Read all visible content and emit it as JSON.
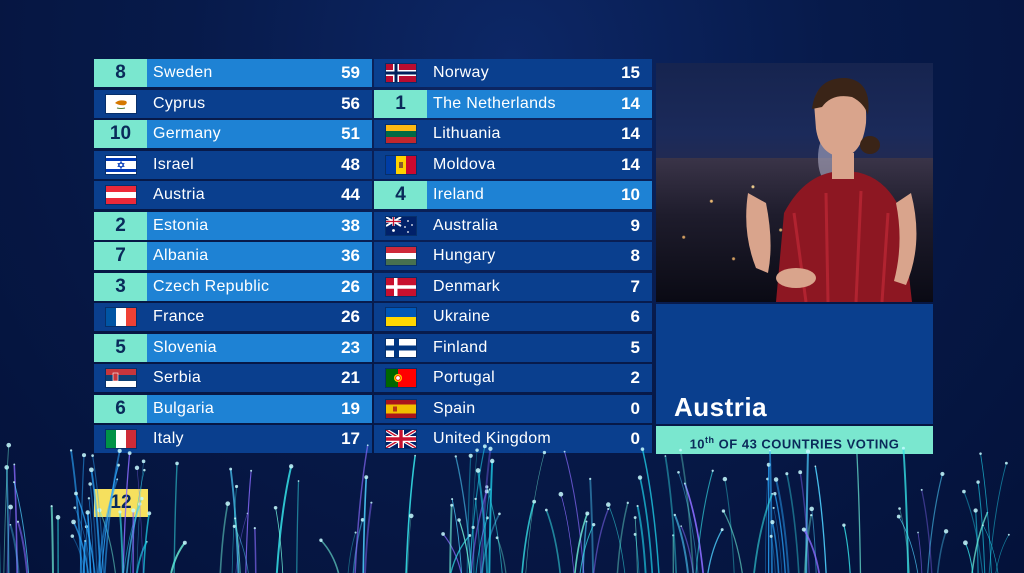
{
  "scoreboard": {
    "left": [
      {
        "points": "8",
        "country": "Sweden",
        "total": "59",
        "flag": "sweden-flag"
      },
      {
        "points": "",
        "country": "Cyprus",
        "total": "56",
        "flag": "cyprus-flag"
      },
      {
        "points": "10",
        "country": "Germany",
        "total": "51",
        "flag": "germany-flag"
      },
      {
        "points": "",
        "country": "Israel",
        "total": "48",
        "flag": "israel-flag"
      },
      {
        "points": "",
        "country": "Austria",
        "total": "44",
        "flag": "austria-flag"
      },
      {
        "points": "2",
        "country": "Estonia",
        "total": "38",
        "flag": "estonia-flag"
      },
      {
        "points": "7",
        "country": "Albania",
        "total": "36",
        "flag": "albania-flag"
      },
      {
        "points": "3",
        "country": "Czech Republic",
        "total": "26",
        "flag": "czech-republic-flag"
      },
      {
        "points": "",
        "country": "France",
        "total": "26",
        "flag": "france-flag"
      },
      {
        "points": "5",
        "country": "Slovenia",
        "total": "23",
        "flag": "slovenia-flag"
      },
      {
        "points": "",
        "country": "Serbia",
        "total": "21",
        "flag": "serbia-flag"
      },
      {
        "points": "6",
        "country": "Bulgaria",
        "total": "19",
        "flag": "bulgaria-flag"
      },
      {
        "points": "",
        "country": "Italy",
        "total": "17",
        "flag": "italy-flag"
      }
    ],
    "right": [
      {
        "points": "",
        "country": "Norway",
        "total": "15",
        "flag": "norway-flag"
      },
      {
        "points": "1",
        "country": "The Netherlands",
        "total": "14",
        "flag": "netherlands-flag"
      },
      {
        "points": "",
        "country": "Lithuania",
        "total": "14",
        "flag": "lithuania-flag"
      },
      {
        "points": "",
        "country": "Moldova",
        "total": "14",
        "flag": "moldova-flag"
      },
      {
        "points": "4",
        "country": "Ireland",
        "total": "10",
        "flag": "ireland-flag"
      },
      {
        "points": "",
        "country": "Australia",
        "total": "9",
        "flag": "australia-flag"
      },
      {
        "points": "",
        "country": "Hungary",
        "total": "8",
        "flag": "hungary-flag"
      },
      {
        "points": "",
        "country": "Denmark",
        "total": "7",
        "flag": "denmark-flag"
      },
      {
        "points": "",
        "country": "Ukraine",
        "total": "6",
        "flag": "ukraine-flag"
      },
      {
        "points": "",
        "country": "Finland",
        "total": "5",
        "flag": "finland-flag"
      },
      {
        "points": "",
        "country": "Portugal",
        "total": "2",
        "flag": "portugal-flag"
      },
      {
        "points": "",
        "country": "Spain",
        "total": "0",
        "flag": "spain-flag"
      },
      {
        "points": "",
        "country": "United Kingdom",
        "total": "0",
        "flag": "united-kingdom-flag"
      }
    ]
  },
  "voter": {
    "country": "Austria",
    "position_number": "10",
    "position_suffix": "th",
    "status_text": "OF 43 COUNTRIES VOTING"
  },
  "next_points": "12",
  "colors": {
    "panel_blue": "#0a3f8e",
    "scored_blue": "#1e82d4",
    "points_mint": "#7ae7cf",
    "next_points_yellow": "#f6e05e",
    "text_dark": "#0a2a5a"
  }
}
